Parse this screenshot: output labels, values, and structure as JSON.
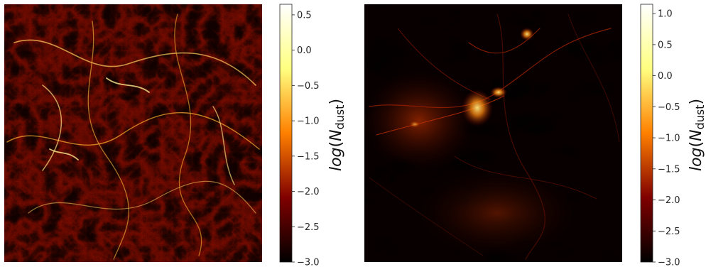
{
  "chart_data": [
    {
      "type": "heatmap",
      "title": "",
      "xlabel": "",
      "ylabel": "",
      "colormap": "afmhot",
      "colorbar": {
        "label_math": "log",
        "label_var": "N",
        "label_sub": "dust",
        "range": [
          -3.0,
          0.65
        ],
        "ticks": [
          0.5,
          0.0,
          -0.5,
          -1.0,
          -1.5,
          -2.0,
          -2.5,
          -3.0
        ],
        "tick_labels": [
          "0.5",
          "0.0",
          "−0.5",
          "−1.0",
          "−1.5",
          "−2.0",
          "−2.5",
          "−3.0"
        ]
      },
      "pattern": "dense filamentary network, mostly dark red with bright yellow-orange filaments throughout"
    },
    {
      "type": "heatmap",
      "title": "",
      "xlabel": "",
      "ylabel": "",
      "colormap": "afmhot",
      "colorbar": {
        "label_math": "log",
        "label_var": "N",
        "label_sub": "dust",
        "range": [
          -3.0,
          1.15
        ],
        "ticks": [
          1.0,
          0.5,
          0.0,
          -0.5,
          -1.0,
          -1.5,
          -2.0,
          -2.5,
          -3.0
        ],
        "tick_labels": [
          "1.0",
          "0.5",
          "0.0",
          "−0.5",
          "−1.0",
          "−1.5",
          "−2.0",
          "−2.5",
          "−3.0"
        ]
      },
      "pattern": "mostly black with sparse red filaments; bright orange-yellow knots upper-left of center and near top"
    }
  ],
  "colors": {
    "cmap_black": "#000000",
    "cmap_darkred": "#800000",
    "cmap_orange": "#ff8000",
    "cmap_yellow": "#ffff80",
    "cmap_white": "#ffffff",
    "axis": "#262626"
  }
}
